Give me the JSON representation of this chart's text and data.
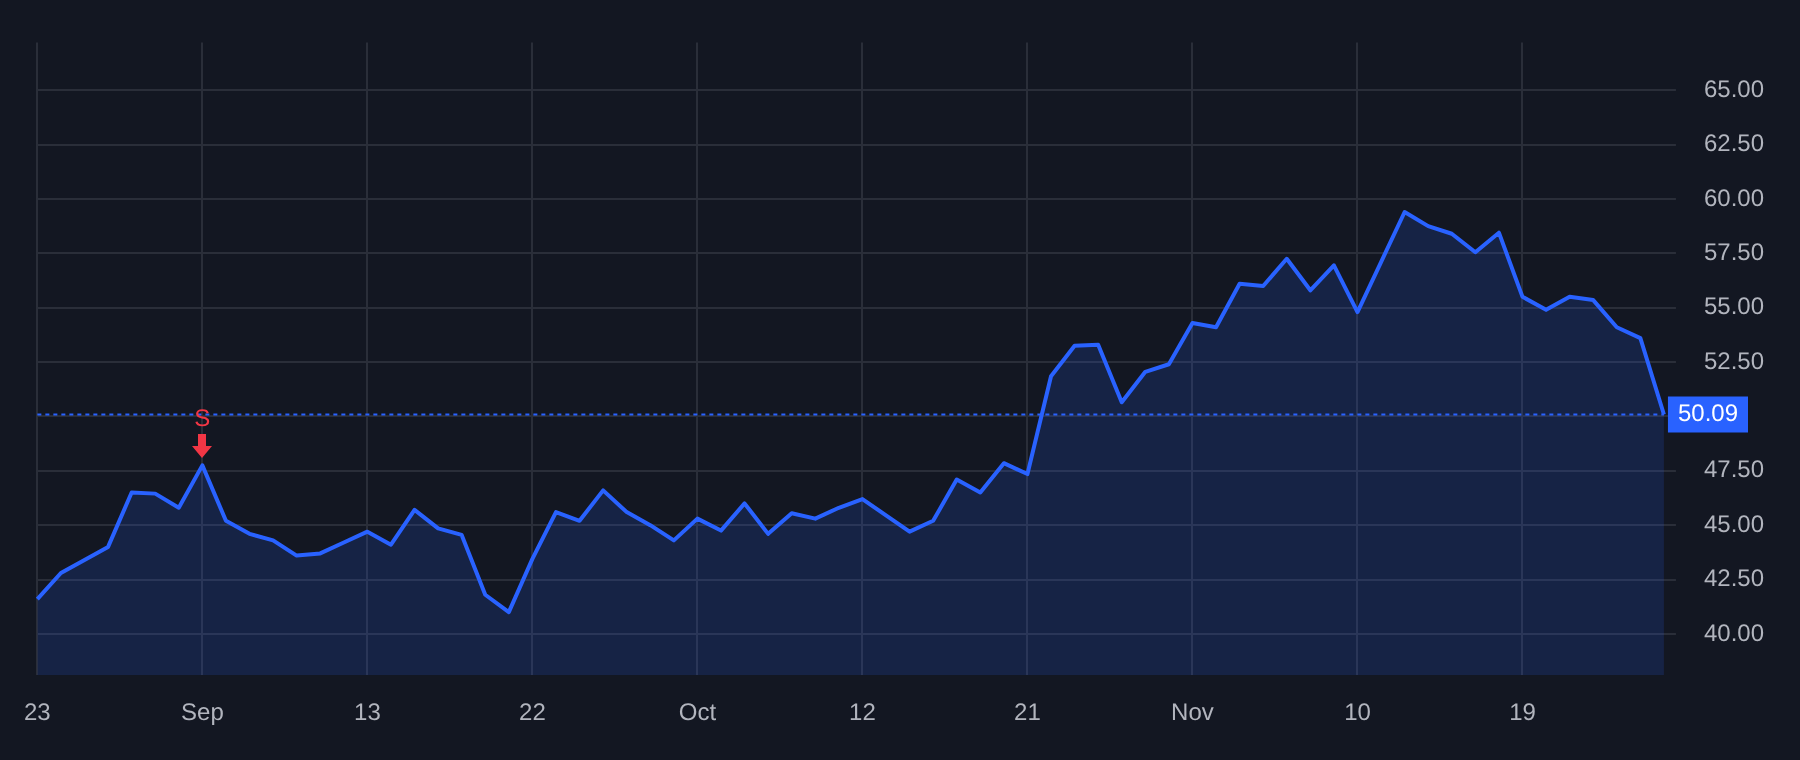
{
  "chart_data": {
    "type": "area",
    "categories": [
      "23",
      null,
      null,
      null,
      null,
      null,
      null,
      "Sep",
      null,
      null,
      null,
      null,
      null,
      null,
      "13",
      null,
      null,
      null,
      null,
      null,
      null,
      "22",
      null,
      null,
      null,
      null,
      null,
      null,
      "Oct",
      null,
      null,
      null,
      null,
      null,
      null,
      "12",
      null,
      null,
      null,
      null,
      null,
      null,
      "21",
      null,
      null,
      null,
      null,
      null,
      null,
      "Nov",
      null,
      null,
      null,
      null,
      null,
      null,
      "10",
      null,
      null,
      null,
      null,
      null,
      null,
      "19",
      null,
      null,
      null,
      null,
      null,
      null
    ],
    "series": [
      {
        "color": "#2962ff",
        "values": [
          41.6,
          42.8,
          43.4,
          44.0,
          46.5,
          46.45,
          45.8,
          47.75,
          45.2,
          44.6,
          44.3,
          43.6,
          43.7,
          44.2,
          44.7,
          44.1,
          45.7,
          44.85,
          44.55,
          41.8,
          41.0,
          43.45,
          45.6,
          45.2,
          46.6,
          45.6,
          45.0,
          44.3,
          45.3,
          44.75,
          46.0,
          44.6,
          45.55,
          45.3,
          45.8,
          46.2,
          45.45,
          44.7,
          45.2,
          47.1,
          46.5,
          47.85,
          47.35,
          51.85,
          53.25,
          53.3,
          50.65,
          52.05,
          52.4,
          54.3,
          54.1,
          56.1,
          56.0,
          57.25,
          55.8,
          56.95,
          54.8,
          57.1,
          59.4,
          58.75,
          58.4,
          57.55,
          58.45,
          55.5,
          54.9,
          55.5,
          55.35,
          54.1,
          53.6,
          50.09
        ]
      }
    ],
    "ylim": [
      38.1,
      67.2
    ],
    "yticks": [
      {
        "value": 40,
        "label": "40.00"
      },
      {
        "value": 42.5,
        "label": "42.50"
      },
      {
        "value": 45,
        "label": "45.00"
      },
      {
        "value": 47.5,
        "label": "47.50"
      },
      {
        "value": 50,
        "label": null
      },
      {
        "value": 52.5,
        "label": "52.50"
      },
      {
        "value": 55,
        "label": "55.00"
      },
      {
        "value": 57.5,
        "label": "57.50"
      },
      {
        "value": 60,
        "label": "60.00"
      },
      {
        "value": 62.5,
        "label": "62.50"
      },
      {
        "value": 65,
        "label": "65.00"
      }
    ],
    "ref_lines": [
      {
        "axis": "y",
        "value": 50.09,
        "label": "50.09",
        "color": "#2962ff",
        "line_style": "dotted"
      }
    ],
    "annotations": [
      {
        "text": "S",
        "x": "Sep",
        "y": 47.75
      }
    ],
    "grid": true,
    "legend": false,
    "marker": "none",
    "line_style": "solid"
  }
}
